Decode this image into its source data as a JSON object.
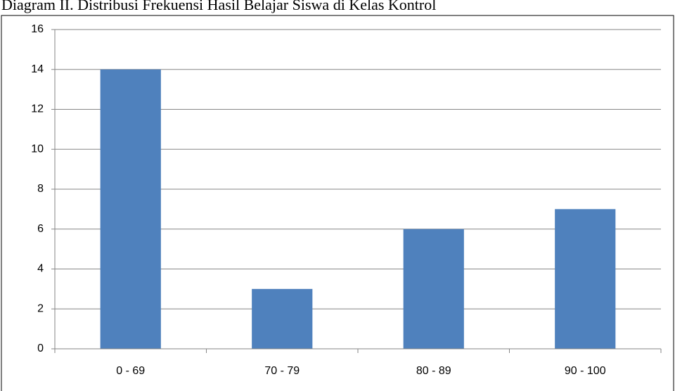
{
  "chart_data": {
    "type": "bar",
    "title": "Diagram II. Distribusi Frekuensi Hasil Belajar Siswa di Kelas Kontrol",
    "categories": [
      "0 - 69",
      "70 - 79",
      "80 - 89",
      "90 - 100"
    ],
    "values": [
      14,
      3,
      6,
      7
    ],
    "color": "#4f81bd",
    "ylim": [
      0,
      16
    ],
    "yticks": [
      0,
      2,
      4,
      6,
      8,
      10,
      12,
      14,
      16
    ],
    "grid": true
  }
}
